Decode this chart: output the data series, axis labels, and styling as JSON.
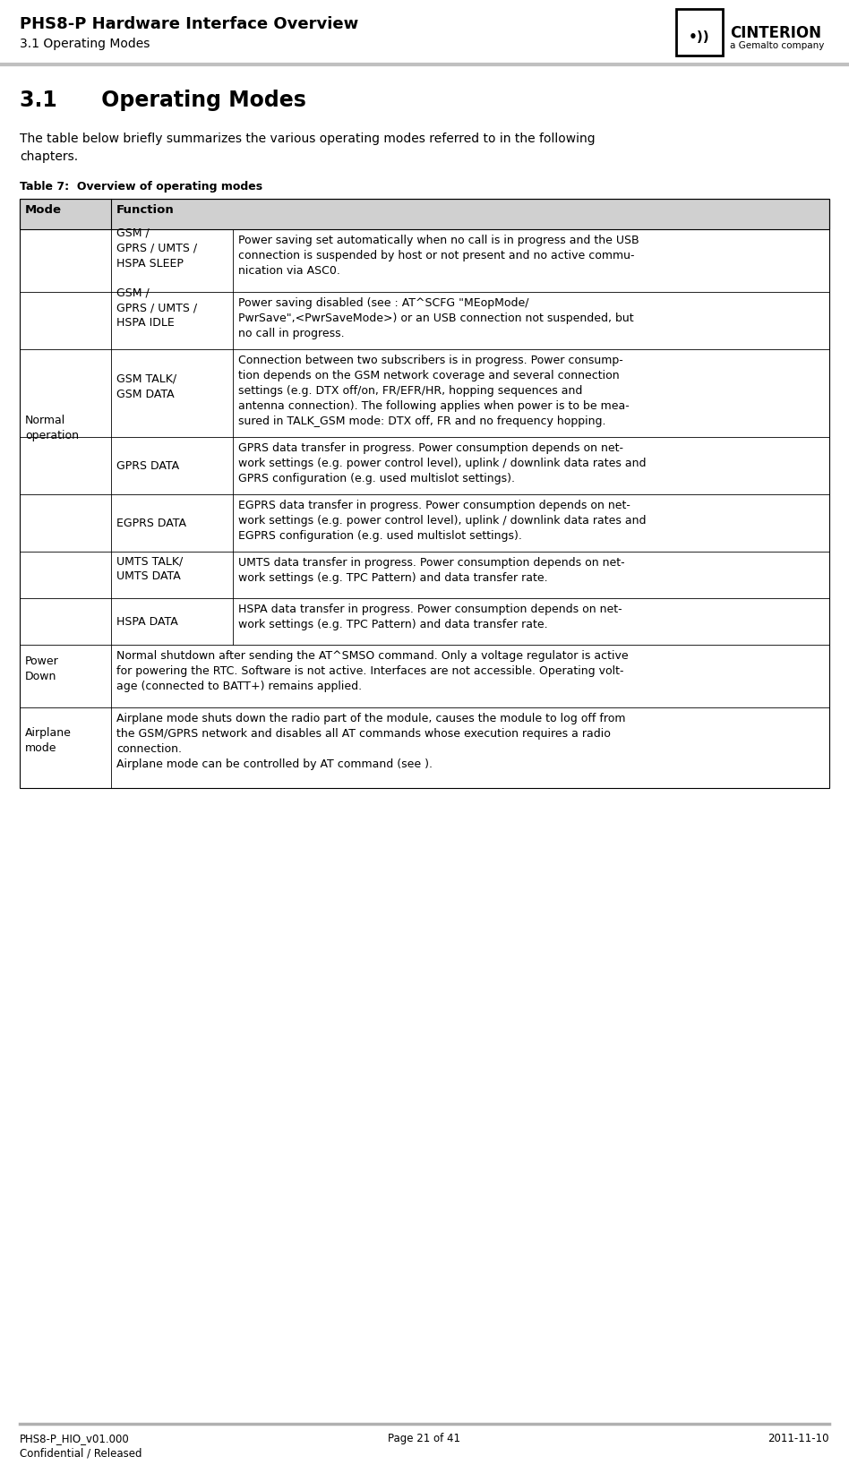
{
  "header_title": "PHS8-P Hardware Interface Overview",
  "header_subtitle": "3.1 Operating Modes",
  "section_title": "3.1      Operating Modes",
  "intro_text_line1": "The table below briefly summarizes the various operating modes referred to in the following",
  "intro_text_line2": "chapters.",
  "table_label": "Table 7:  Overview of operating modes",
  "header_bg": "#d0d0d0",
  "border_color": "#000000",
  "footer_left": "PHS8-P_HIO_v01.000\nConfidential / Released",
  "footer_center": "Page 21 of 41",
  "footer_right": "2011-11-10",
  "table_rows": [
    {
      "mode": "Normal\noperation",
      "mode_span": 7,
      "submode": "GSM /\nGPRS / UMTS /\nHSPA SLEEP",
      "function": "Power saving set automatically when no call is in progress and the USB\nconnection is suspended by host or not present and no active commu-\nnication via ASC0."
    },
    {
      "mode": "",
      "mode_span": 0,
      "submode": "GSM /\nGPRS / UMTS /\nHSPA IDLE",
      "function": "Power saving disabled (see : AT^SCFG \"MEopMode/\nPwrSave\",<PwrSaveMode>) or an USB connection not suspended, but\nno call in progress."
    },
    {
      "mode": "",
      "mode_span": 0,
      "submode": "GSM TALK/\nGSM DATA",
      "function": "Connection between two subscribers is in progress. Power consump-\ntion depends on the GSM network coverage and several connection\nsettings (e.g. DTX off/on, FR/EFR/HR, hopping sequences and\nantenna connection). The following applies when power is to be mea-\nsured in TALK_GSM mode: DTX off, FR and no frequency hopping."
    },
    {
      "mode": "",
      "mode_span": 0,
      "submode": "GPRS DATA",
      "function": "GPRS data transfer in progress. Power consumption depends on net-\nwork settings (e.g. power control level), uplink / downlink data rates and\nGPRS configuration (e.g. used multislot settings)."
    },
    {
      "mode": "",
      "mode_span": 0,
      "submode": "EGPRS DATA",
      "function": "EGPRS data transfer in progress. Power consumption depends on net-\nwork settings (e.g. power control level), uplink / downlink data rates and\nEGPRS configuration (e.g. used multislot settings)."
    },
    {
      "mode": "",
      "mode_span": 0,
      "submode": "UMTS TALK/\nUMTS DATA",
      "function": "UMTS data transfer in progress. Power consumption depends on net-\nwork settings (e.g. TPC Pattern) and data transfer rate."
    },
    {
      "mode": "",
      "mode_span": 0,
      "submode": "HSPA DATA",
      "function": "HSPA data transfer in progress. Power consumption depends on net-\nwork settings (e.g. TPC Pattern) and data transfer rate."
    },
    {
      "mode": "Power\nDown",
      "mode_span": 1,
      "submode": null,
      "function": "Normal shutdown after sending the AT^SMSO command. Only a voltage regulator is active\nfor powering the RTC. Software is not active. Interfaces are not accessible. Operating volt-\nage (connected to BATT+) remains applied."
    },
    {
      "mode": "Airplane\nmode",
      "mode_span": 1,
      "submode": null,
      "function": "Airplane mode shuts down the radio part of the module, causes the module to log off from\nthe GSM/GPRS network and disables all AT commands whose execution requires a radio\nconnection.\nAirplane mode can be controlled by AT command (see )."
    }
  ]
}
